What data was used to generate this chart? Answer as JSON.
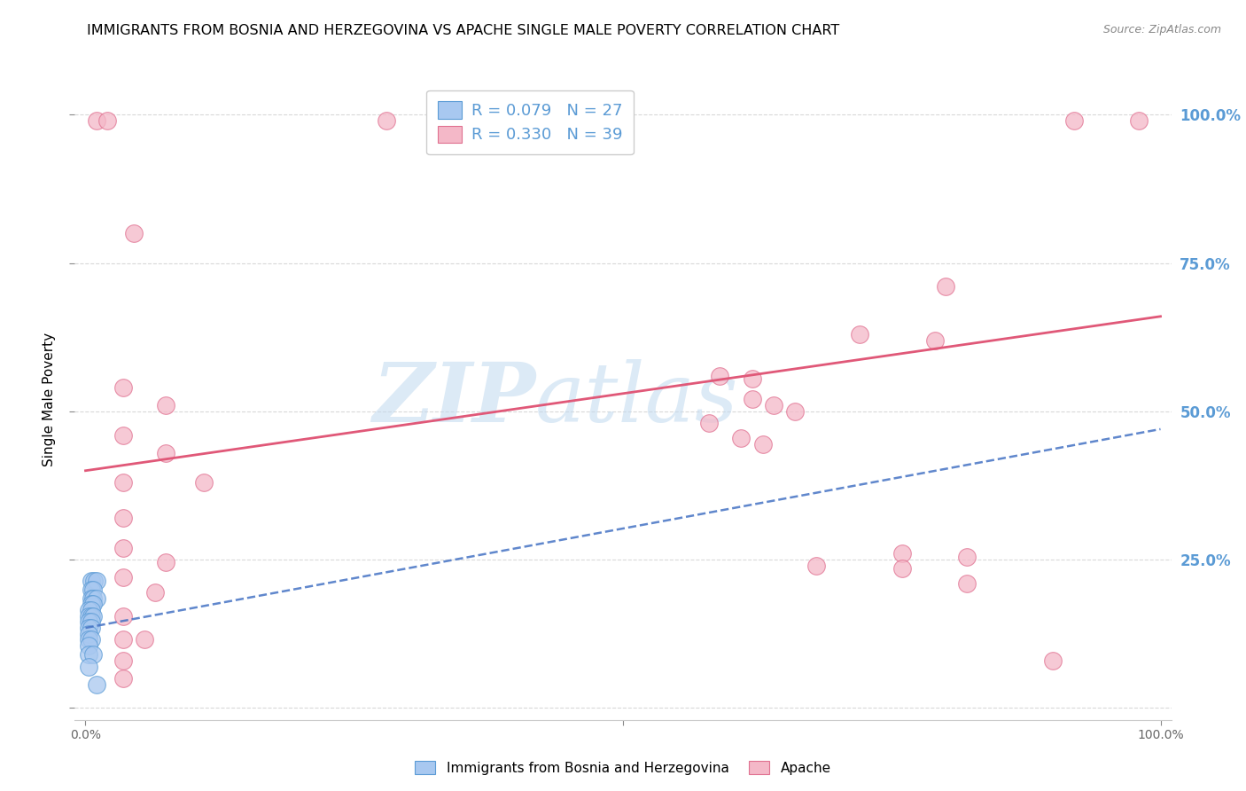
{
  "title": "IMMIGRANTS FROM BOSNIA AND HERZEGOVINA VS APACHE SINGLE MALE POVERTY CORRELATION CHART",
  "source": "Source: ZipAtlas.com",
  "ylabel": "Single Male Poverty",
  "legend_blue_R": "R = 0.079",
  "legend_blue_N": "N = 27",
  "legend_pink_R": "R = 0.330",
  "legend_pink_N": "N = 39",
  "watermark_zip": "ZIP",
  "watermark_atlas": "atlas",
  "blue_scatter": [
    [
      0.005,
      0.215
    ],
    [
      0.008,
      0.215
    ],
    [
      0.01,
      0.215
    ],
    [
      0.005,
      0.2
    ],
    [
      0.007,
      0.2
    ],
    [
      0.005,
      0.185
    ],
    [
      0.007,
      0.185
    ],
    [
      0.01,
      0.185
    ],
    [
      0.005,
      0.175
    ],
    [
      0.007,
      0.175
    ],
    [
      0.003,
      0.165
    ],
    [
      0.005,
      0.165
    ],
    [
      0.003,
      0.155
    ],
    [
      0.005,
      0.155
    ],
    [
      0.007,
      0.155
    ],
    [
      0.003,
      0.145
    ],
    [
      0.005,
      0.145
    ],
    [
      0.003,
      0.135
    ],
    [
      0.005,
      0.135
    ],
    [
      0.003,
      0.125
    ],
    [
      0.003,
      0.115
    ],
    [
      0.005,
      0.115
    ],
    [
      0.003,
      0.105
    ],
    [
      0.003,
      0.09
    ],
    [
      0.007,
      0.09
    ],
    [
      0.003,
      0.07
    ],
    [
      0.01,
      0.04
    ]
  ],
  "pink_scatter": [
    [
      0.01,
      0.99
    ],
    [
      0.02,
      0.99
    ],
    [
      0.28,
      0.99
    ],
    [
      0.92,
      0.99
    ],
    [
      0.98,
      0.99
    ],
    [
      0.045,
      0.8
    ],
    [
      0.8,
      0.71
    ],
    [
      0.72,
      0.63
    ],
    [
      0.79,
      0.62
    ],
    [
      0.59,
      0.56
    ],
    [
      0.62,
      0.555
    ],
    [
      0.62,
      0.52
    ],
    [
      0.64,
      0.51
    ],
    [
      0.66,
      0.5
    ],
    [
      0.58,
      0.48
    ],
    [
      0.61,
      0.455
    ],
    [
      0.63,
      0.445
    ],
    [
      0.035,
      0.54
    ],
    [
      0.075,
      0.51
    ],
    [
      0.035,
      0.46
    ],
    [
      0.075,
      0.43
    ],
    [
      0.035,
      0.38
    ],
    [
      0.11,
      0.38
    ],
    [
      0.035,
      0.32
    ],
    [
      0.035,
      0.27
    ],
    [
      0.075,
      0.245
    ],
    [
      0.035,
      0.22
    ],
    [
      0.065,
      0.195
    ],
    [
      0.035,
      0.155
    ],
    [
      0.76,
      0.26
    ],
    [
      0.82,
      0.255
    ],
    [
      0.68,
      0.24
    ],
    [
      0.76,
      0.235
    ],
    [
      0.82,
      0.21
    ],
    [
      0.035,
      0.115
    ],
    [
      0.055,
      0.115
    ],
    [
      0.9,
      0.08
    ],
    [
      0.035,
      0.08
    ],
    [
      0.035,
      0.05
    ]
  ],
  "blue_line_x": [
    0.0,
    1.0
  ],
  "blue_line_y": [
    0.135,
    0.47
  ],
  "pink_line_x": [
    0.0,
    1.0
  ],
  "pink_line_y": [
    0.4,
    0.66
  ],
  "xlim": [
    -0.01,
    1.01
  ],
  "ylim": [
    -0.02,
    1.06
  ],
  "yticks": [
    0.0,
    0.25,
    0.5,
    0.75,
    1.0
  ],
  "ytick_labels_right": [
    "",
    "25.0%",
    "50.0%",
    "75.0%",
    "100.0%"
  ],
  "blue_color": "#A8C8F0",
  "blue_edge_color": "#5B9BD5",
  "blue_line_color": "#4472C4",
  "pink_color": "#F4B8C8",
  "pink_edge_color": "#E07090",
  "pink_line_color": "#E05878",
  "right_label_color": "#5B9BD5",
  "grid_color": "#D0D0D0",
  "watermark_color": "#C5DCF0",
  "title_fontsize": 11.5,
  "marker_size": 200
}
